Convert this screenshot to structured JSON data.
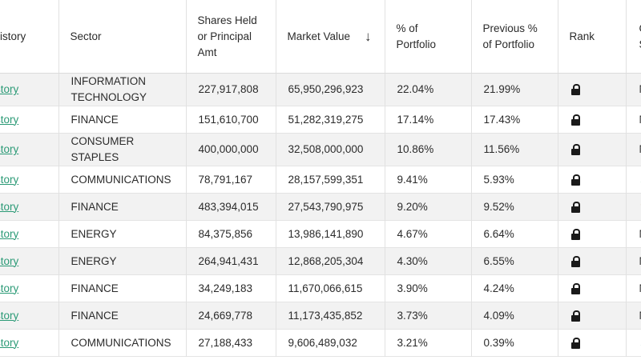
{
  "columns": {
    "history": "istory",
    "sector": "Sector",
    "shares": "Shares Held or Principal Amt",
    "market_value": "Market Value",
    "sort_indicator": "↓",
    "pct": "% of Portfolio",
    "prev_pct": "Previous % of Portfolio",
    "rank": "Rank",
    "change": "C S"
  },
  "rows": [
    {
      "history": "istory",
      "sector": "INFORMATION TECHNOLOGY",
      "shares": "227,917,808",
      "market_value": "65,950,296,923",
      "pct": "22.04%",
      "prev_pct": "21.99%",
      "change": "N",
      "change_type": "text"
    },
    {
      "history": "istory",
      "sector": "FINANCE",
      "shares": "151,610,700",
      "market_value": "51,282,319,275",
      "pct": "17.14%",
      "prev_pct": "17.43%",
      "change": "N",
      "change_type": "text"
    },
    {
      "history": "istory",
      "sector": "CONSUMER STAPLES",
      "shares": "400,000,000",
      "market_value": "32,508,000,000",
      "pct": "10.86%",
      "prev_pct": "11.56%",
      "change": "N",
      "change_type": "text"
    },
    {
      "history": "istory",
      "sector": "COMMUNICATIONS",
      "shares": "78,791,167",
      "market_value": "28,157,599,351",
      "pct": "9.41%",
      "prev_pct": "5.93%",
      "change": "▲",
      "change_type": "up"
    },
    {
      "history": "istory",
      "sector": "FINANCE",
      "shares": "483,394,015",
      "market_value": "27,543,790,975",
      "pct": "9.20%",
      "prev_pct": "9.52%",
      "change": "▼",
      "change_type": "down"
    },
    {
      "history": "istory",
      "sector": "ENERGY",
      "shares": "84,375,856",
      "market_value": "13,986,141,890",
      "pct": "4.67%",
      "prev_pct": "6.64%",
      "change": "N",
      "change_type": "text"
    },
    {
      "history": "istory",
      "sector": "ENERGY",
      "shares": "264,941,431",
      "market_value": "12,868,205,304",
      "pct": "4.30%",
      "prev_pct": "6.55%",
      "change": "N",
      "change_type": "text"
    },
    {
      "history": "istory",
      "sector": "FINANCE",
      "shares": "34,249,183",
      "market_value": "11,670,066,615",
      "pct": "3.90%",
      "prev_pct": "4.24%",
      "change": "N",
      "change_type": "text"
    },
    {
      "history": "istory",
      "sector": "FINANCE",
      "shares": "24,669,778",
      "market_value": "11,173,435,852",
      "pct": "3.73%",
      "prev_pct": "4.09%",
      "change": "N",
      "change_type": "text"
    },
    {
      "history": "istory",
      "sector": "COMMUNICATIONS",
      "shares": "27,188,433",
      "market_value": "9,606,489,032",
      "pct": "3.21%",
      "prev_pct": "0.39%",
      "change": "▲",
      "change_type": "up"
    }
  ],
  "icons": {
    "rank": "lock-icon"
  },
  "colors": {
    "history_link": "#2b9a76",
    "stripe": "#f2f2f2",
    "up": "#2e9e5b",
    "down": "#d9822b"
  }
}
